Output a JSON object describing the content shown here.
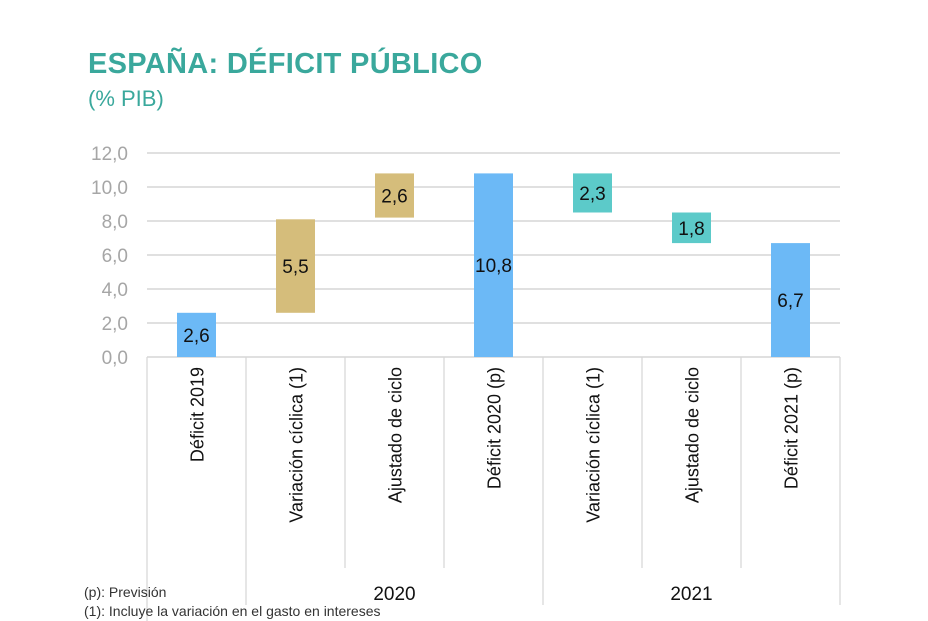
{
  "chart_data": {
    "type": "bar",
    "subtype": "waterfall",
    "title": "ESPAÑA: DÉFICIT PÚBLICO",
    "subtitle": "(% PIB)",
    "ylim": [
      0,
      12
    ],
    "yticks": [
      "0,0",
      "2,0",
      "4,0",
      "6,0",
      "8,0",
      "10,0",
      "12,0"
    ],
    "grid": true,
    "categories": [
      "Déficit 2019",
      "Variación cíclica (1)",
      "Ajustado de ciclo",
      "Déficit 2020 (p)",
      "Variación cíclica (1)",
      "Ajustado de ciclo",
      "Déficit 2021 (p)"
    ],
    "groups": [
      {
        "label": "",
        "span": 1
      },
      {
        "label": "2020",
        "span": 3
      },
      {
        "label": "2021",
        "span": 3
      }
    ],
    "bars": [
      {
        "base": 0,
        "top": 2.6,
        "label": "2,6",
        "kind": "total"
      },
      {
        "base": 2.6,
        "top": 8.1,
        "label": "5,5",
        "kind": "increase"
      },
      {
        "base": 8.2,
        "top": 10.8,
        "label": "2,6",
        "kind": "increase"
      },
      {
        "base": 0,
        "top": 10.8,
        "label": "10,8",
        "kind": "total"
      },
      {
        "base": 8.5,
        "top": 10.8,
        "label": "2,3",
        "kind": "decrease"
      },
      {
        "base": 6.7,
        "top": 8.5,
        "label": "1,8",
        "kind": "decrease"
      },
      {
        "base": 0,
        "top": 6.7,
        "label": "6,7",
        "kind": "total"
      }
    ],
    "colors": {
      "total": "#6cb9f6",
      "increase": "#d5bd7b",
      "decrease": "#5ccac9",
      "title": "#3aa89c"
    }
  },
  "notes": [
    "(p): Previsión",
    "(1): Incluye la variación en el gasto en intereses"
  ]
}
